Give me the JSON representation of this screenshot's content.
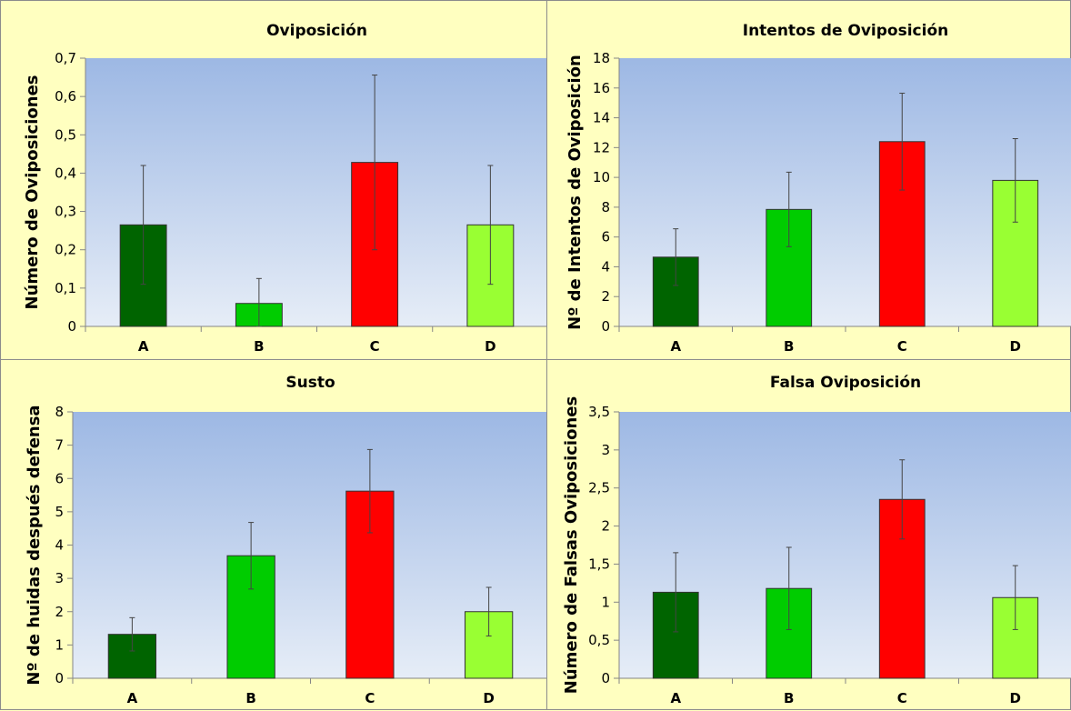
{
  "chart_data": [
    {
      "type": "bar",
      "title": "Oviposición",
      "ylabel": "Número de Oviposiciones",
      "xlabel": "",
      "categories": [
        "A",
        "B",
        "C",
        "D"
      ],
      "values": [
        0.265,
        0.06,
        0.428,
        0.265
      ],
      "errors": [
        0.155,
        0.065,
        0.228,
        0.155
      ],
      "ylim": [
        0,
        0.7
      ],
      "yticks": [
        0,
        0.1,
        0.2,
        0.3,
        0.4,
        0.5,
        0.6,
        0.7
      ],
      "ytick_labels": [
        "0",
        "0,1",
        "0,2",
        "0,3",
        "0,4",
        "0,5",
        "0,6",
        "0,7"
      ],
      "bar_colors": [
        "#006400",
        "#00cc00",
        "#ff0000",
        "#99ff33"
      ],
      "grid": false,
      "legend": "none"
    },
    {
      "type": "bar",
      "title": "Intentos de Oviposición",
      "ylabel": "Nº de Intentos de Oviposición",
      "xlabel": "",
      "categories": [
        "A",
        "B",
        "C",
        "D"
      ],
      "values": [
        4.65,
        7.85,
        12.4,
        9.8
      ],
      "errors": [
        1.9,
        2.5,
        3.25,
        2.8
      ],
      "ylim": [
        0,
        18
      ],
      "yticks": [
        0,
        2,
        4,
        6,
        8,
        10,
        12,
        14,
        16,
        18
      ],
      "ytick_labels": [
        "0",
        "2",
        "4",
        "6",
        "8",
        "10",
        "12",
        "14",
        "16",
        "18"
      ],
      "bar_colors": [
        "#006400",
        "#00cc00",
        "#ff0000",
        "#99ff33"
      ],
      "grid": false,
      "legend": "none"
    },
    {
      "type": "bar",
      "title": "Susto",
      "ylabel": "Nº de huidas después defensa",
      "xlabel": "",
      "categories": [
        "A",
        "B",
        "C",
        "D"
      ],
      "values": [
        1.32,
        3.68,
        5.62,
        2.0
      ],
      "errors": [
        0.5,
        1.0,
        1.25,
        0.73
      ],
      "ylim": [
        0,
        8
      ],
      "yticks": [
        0,
        1,
        2,
        3,
        4,
        5,
        6,
        7,
        8
      ],
      "ytick_labels": [
        "0",
        "1",
        "2",
        "3",
        "4",
        "5",
        "6",
        "7",
        "8"
      ],
      "bar_colors": [
        "#006400",
        "#00cc00",
        "#ff0000",
        "#99ff33"
      ],
      "grid": false,
      "legend": "none"
    },
    {
      "type": "bar",
      "title": "Falsa Oviposición",
      "ylabel": "Número de Falsas Oviposiciones",
      "xlabel": "",
      "categories": [
        "A",
        "B",
        "C",
        "D"
      ],
      "values": [
        1.13,
        1.18,
        2.35,
        1.06
      ],
      "errors": [
        0.52,
        0.54,
        0.52,
        0.42
      ],
      "ylim": [
        0,
        3.5
      ],
      "yticks": [
        0,
        0.5,
        1,
        1.5,
        2,
        2.5,
        3,
        3.5
      ],
      "ytick_labels": [
        "0",
        "0,5",
        "1",
        "1,5",
        "2",
        "2,5",
        "3",
        "3,5"
      ],
      "bar_colors": [
        "#006400",
        "#00cc00",
        "#ff0000",
        "#99ff33"
      ],
      "grid": false,
      "legend": "none"
    }
  ],
  "colors": {
    "panel_background": "#ffffc0",
    "plot_gradient_top": "#9db8e4",
    "plot_gradient_bottom": "#e6edf7"
  }
}
